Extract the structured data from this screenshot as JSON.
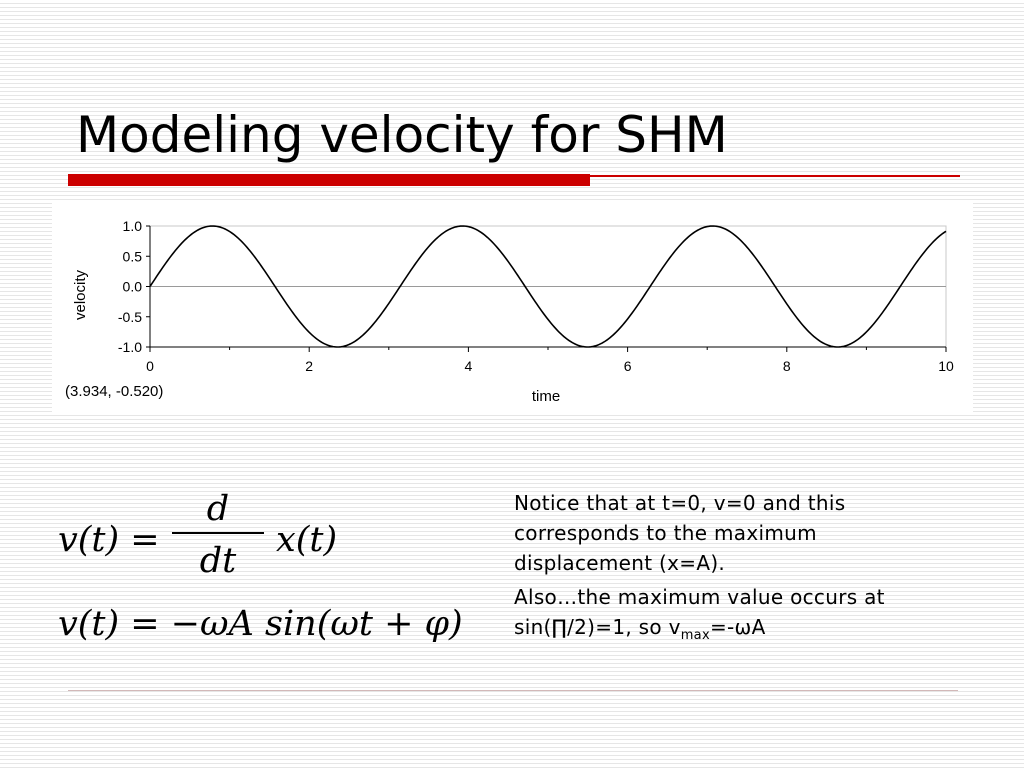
{
  "slide": {
    "title": "Modeling velocity for SHM",
    "formula1": {
      "lhs": "v(t) =",
      "num": "d",
      "den": "dt",
      "rhs": "x(t)"
    },
    "formula2": "v(t) = −ωA sin(ωt + φ)",
    "note1": "Notice that at t=0, v=0 and this corresponds to the maximum displacement (x=A).",
    "note2_prefix": "Also…the maximum value occurs at sin(∏/2)=1, so v",
    "note2_sub": "max",
    "note2_suffix": "=-ωA"
  },
  "chart_data": {
    "type": "line",
    "xlabel": "time",
    "ylabel": "velocity",
    "xlim": [
      0,
      10
    ],
    "ylim": [
      -1.0,
      1.0
    ],
    "x_ticks": [
      0,
      2,
      4,
      6,
      8,
      10
    ],
    "x_tick_labels": [
      "0",
      "2",
      "4",
      "6",
      "8",
      "10"
    ],
    "y_ticks": [
      1.0,
      0.5,
      0.0,
      -0.5,
      -1.0
    ],
    "y_tick_labels": [
      "1.0",
      "0.5",
      "0.0",
      "-0.5",
      "-1.0"
    ],
    "grid": false,
    "zero_line": true,
    "series": [
      {
        "function": "sin(2t)",
        "amplitude": 1.0,
        "angular_frequency": 2.0,
        "x_samples": [
          0,
          0.785,
          1.571,
          2.356,
          3.142,
          3.927,
          4.712,
          5.498,
          6.283,
          7.069,
          7.854,
          8.639,
          9.425,
          10
        ],
        "y_samples": [
          0,
          1.0,
          0,
          -1.0,
          0,
          1.0,
          0,
          -1.0,
          0,
          1.0,
          0,
          -1.0,
          0,
          0.913
        ],
        "color": "#000000"
      }
    ],
    "cursor_readout": "(3.934, -0.520)"
  }
}
